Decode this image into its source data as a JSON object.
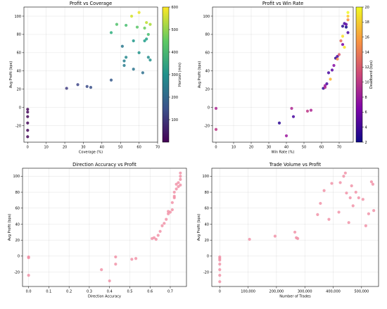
{
  "chart_data": [
    {
      "type": "scatter",
      "title": "Profit vs Coverage",
      "xlabel": "Coverage (%)",
      "ylabel": "Avg Profit (bps)",
      "xlim": [
        -2,
        70
      ],
      "ylim": [
        -38,
        110
      ],
      "xticks": [
        0,
        10,
        20,
        30,
        40,
        50,
        60,
        70
      ],
      "yticks": [
        -20,
        0,
        20,
        40,
        60,
        80,
        100
      ],
      "grid": true,
      "colormap": "viridis",
      "colorbar": {
        "label": "Horizon (min)",
        "range": [
          0,
          600
        ],
        "ticks": [
          100,
          200,
          300,
          400,
          500,
          600
        ]
      },
      "points": [
        {
          "x": 0,
          "y": -2,
          "c": 10
        },
        {
          "x": 0,
          "y": -5,
          "c": 10
        },
        {
          "x": 0,
          "y": -10,
          "c": 10
        },
        {
          "x": 0,
          "y": -17,
          "c": 10
        },
        {
          "x": 0,
          "y": -25,
          "c": 10
        },
        {
          "x": 0,
          "y": -32,
          "c": 10
        },
        {
          "x": 21,
          "y": 21,
          "c": 110
        },
        {
          "x": 27,
          "y": 25,
          "c": 130
        },
        {
          "x": 32,
          "y": 23,
          "c": 140
        },
        {
          "x": 34,
          "y": 22,
          "c": 150
        },
        {
          "x": 45,
          "y": 30,
          "c": 170
        },
        {
          "x": 51,
          "y": 67,
          "c": 240
        },
        {
          "x": 52,
          "y": 46,
          "c": 250
        },
        {
          "x": 52,
          "y": 51,
          "c": 260
        },
        {
          "x": 53,
          "y": 55,
          "c": 280
        },
        {
          "x": 57,
          "y": 42,
          "c": 230
        },
        {
          "x": 62,
          "y": 38,
          "c": 220
        },
        {
          "x": 65,
          "y": 55,
          "c": 290
        },
        {
          "x": 66,
          "y": 52,
          "c": 300
        },
        {
          "x": 60,
          "y": 60,
          "c": 310
        },
        {
          "x": 57,
          "y": 73,
          "c": 320
        },
        {
          "x": 63,
          "y": 73,
          "c": 330
        },
        {
          "x": 64,
          "y": 75,
          "c": 340
        },
        {
          "x": 45,
          "y": 82,
          "c": 380
        },
        {
          "x": 48,
          "y": 91,
          "c": 430
        },
        {
          "x": 53,
          "y": 90,
          "c": 420
        },
        {
          "x": 59,
          "y": 88,
          "c": 440
        },
        {
          "x": 65,
          "y": 80,
          "c": 420
        },
        {
          "x": 63,
          "y": 87,
          "c": 460
        },
        {
          "x": 56,
          "y": 100,
          "c": 560
        },
        {
          "x": 60,
          "y": 104,
          "c": 580
        },
        {
          "x": 64,
          "y": 93,
          "c": 540
        },
        {
          "x": 66,
          "y": 91,
          "c": 520
        }
      ]
    },
    {
      "type": "scatter",
      "title": "Profit vs Win Rate",
      "xlabel": "Win Rate (%)",
      "ylabel": "Avg Profit (bps)",
      "xlim": [
        -2,
        78
      ],
      "ylim": [
        -38,
        110
      ],
      "xticks": [
        0,
        10,
        20,
        30,
        40,
        50,
        60,
        70
      ],
      "yticks": [
        -20,
        0,
        20,
        40,
        60,
        80,
        100
      ],
      "grid": true,
      "colormap": "plasma",
      "colorbar": {
        "label": "Deadband (bps)",
        "range": [
          2,
          20
        ],
        "ticks": [
          2,
          4,
          6,
          8,
          10,
          12,
          14,
          16,
          18,
          20
        ]
      },
      "points": [
        {
          "x": 0,
          "y": -1,
          "c": 9
        },
        {
          "x": 0,
          "y": -24,
          "c": 10
        },
        {
          "x": 36,
          "y": -17,
          "c": 3
        },
        {
          "x": 40,
          "y": -31,
          "c": 8
        },
        {
          "x": 43,
          "y": -1,
          "c": 9
        },
        {
          "x": 44,
          "y": -10,
          "c": 4
        },
        {
          "x": 52,
          "y": -4,
          "c": 10
        },
        {
          "x": 54,
          "y": -3,
          "c": 9
        },
        {
          "x": 61,
          "y": 21,
          "c": 3
        },
        {
          "x": 62,
          "y": 22,
          "c": 9
        },
        {
          "x": 62,
          "y": 24,
          "c": 8
        },
        {
          "x": 63,
          "y": 26,
          "c": 4
        },
        {
          "x": 64,
          "y": 38,
          "c": 4
        },
        {
          "x": 65,
          "y": 31,
          "c": 17
        },
        {
          "x": 66,
          "y": 41,
          "c": 5
        },
        {
          "x": 67,
          "y": 46,
          "c": 7
        },
        {
          "x": 68,
          "y": 54,
          "c": 3
        },
        {
          "x": 69,
          "y": 56,
          "c": 4
        },
        {
          "x": 69,
          "y": 53,
          "c": 15
        },
        {
          "x": 70,
          "y": 58,
          "c": 12
        },
        {
          "x": 71,
          "y": 73,
          "c": 13
        },
        {
          "x": 72,
          "y": 69,
          "c": 6
        },
        {
          "x": 72,
          "y": 78,
          "c": 19
        },
        {
          "x": 73,
          "y": 66,
          "c": 19
        },
        {
          "x": 72,
          "y": 89,
          "c": 3
        },
        {
          "x": 73,
          "y": 92,
          "c": 4
        },
        {
          "x": 74,
          "y": 88,
          "c": 2
        },
        {
          "x": 74,
          "y": 91,
          "c": 5
        },
        {
          "x": 75,
          "y": 82,
          "c": 4
        },
        {
          "x": 75,
          "y": 96,
          "c": 15
        },
        {
          "x": 75,
          "y": 100,
          "c": 18
        },
        {
          "x": 75,
          "y": 104,
          "c": 20
        }
      ]
    },
    {
      "type": "scatter",
      "title": "Direction Accuracy vs Profit",
      "xlabel": "Direction Accuracy",
      "ylabel": "Avg Profit (bps)",
      "xlim": [
        -0.03,
        0.78
      ],
      "ylim": [
        -38,
        110
      ],
      "xticks": [
        0.0,
        0.1,
        0.2,
        0.3,
        0.4,
        0.5,
        0.6,
        0.7
      ],
      "yticks": [
        -20,
        0,
        20,
        40,
        60,
        80,
        100
      ],
      "grid": true,
      "color": "#f08ca3",
      "points": [
        {
          "x": 0.0,
          "y": -1
        },
        {
          "x": 0.0,
          "y": -2
        },
        {
          "x": 0.0,
          "y": -24
        },
        {
          "x": 0.36,
          "y": -17
        },
        {
          "x": 0.4,
          "y": -31
        },
        {
          "x": 0.43,
          "y": -1
        },
        {
          "x": 0.43,
          "y": -10
        },
        {
          "x": 0.51,
          "y": -4
        },
        {
          "x": 0.53,
          "y": -3
        },
        {
          "x": 0.61,
          "y": 22
        },
        {
          "x": 0.62,
          "y": 23
        },
        {
          "x": 0.63,
          "y": 21
        },
        {
          "x": 0.64,
          "y": 26
        },
        {
          "x": 0.65,
          "y": 31
        },
        {
          "x": 0.66,
          "y": 38
        },
        {
          "x": 0.67,
          "y": 41
        },
        {
          "x": 0.68,
          "y": 46
        },
        {
          "x": 0.69,
          "y": 53
        },
        {
          "x": 0.69,
          "y": 56
        },
        {
          "x": 0.7,
          "y": 55
        },
        {
          "x": 0.71,
          "y": 58
        },
        {
          "x": 0.71,
          "y": 67
        },
        {
          "x": 0.72,
          "y": 73
        },
        {
          "x": 0.72,
          "y": 75
        },
        {
          "x": 0.72,
          "y": 80
        },
        {
          "x": 0.73,
          "y": 84
        },
        {
          "x": 0.73,
          "y": 90
        },
        {
          "x": 0.74,
          "y": 87
        },
        {
          "x": 0.74,
          "y": 92
        },
        {
          "x": 0.75,
          "y": 96
        },
        {
          "x": 0.75,
          "y": 100
        },
        {
          "x": 0.75,
          "y": 104
        },
        {
          "x": 0.75,
          "y": 89
        }
      ]
    },
    {
      "type": "scatter",
      "title": "Trade Volume vs Profit",
      "xlabel": "Number of Trades",
      "ylabel": "Avg Profit (bps)",
      "xlim": [
        -28000,
        560000
      ],
      "ylim": [
        -38,
        110
      ],
      "xticks": [
        0,
        100000,
        200000,
        300000,
        400000,
        500000
      ],
      "xticklabels": [
        "0",
        "100,000",
        "200,000",
        "300,000",
        "400,000",
        "500,000"
      ],
      "yticks": [
        -20,
        0,
        20,
        40,
        60,
        80,
        100
      ],
      "grid": true,
      "color": "#f08ca3",
      "points": [
        {
          "x": 0,
          "y": -1
        },
        {
          "x": 0,
          "y": -3
        },
        {
          "x": 0,
          "y": -5
        },
        {
          "x": 0,
          "y": -10
        },
        {
          "x": 0,
          "y": -17
        },
        {
          "x": 0,
          "y": -24
        },
        {
          "x": 0,
          "y": -32
        },
        {
          "x": 105000,
          "y": 21
        },
        {
          "x": 195000,
          "y": 25
        },
        {
          "x": 265000,
          "y": 30
        },
        {
          "x": 270000,
          "y": 23
        },
        {
          "x": 275000,
          "y": 22
        },
        {
          "x": 345000,
          "y": 52
        },
        {
          "x": 355000,
          "y": 66
        },
        {
          "x": 368000,
          "y": 82
        },
        {
          "x": 385000,
          "y": 46
        },
        {
          "x": 395000,
          "y": 91
        },
        {
          "x": 420000,
          "y": 55
        },
        {
          "x": 425000,
          "y": 92
        },
        {
          "x": 437000,
          "y": 100
        },
        {
          "x": 443000,
          "y": 104
        },
        {
          "x": 447000,
          "y": 79
        },
        {
          "x": 455000,
          "y": 42
        },
        {
          "x": 460000,
          "y": 73
        },
        {
          "x": 465000,
          "y": 88
        },
        {
          "x": 470000,
          "y": 63
        },
        {
          "x": 480000,
          "y": 80
        },
        {
          "x": 490000,
          "y": 73
        },
        {
          "x": 505000,
          "y": 71
        },
        {
          "x": 515000,
          "y": 38
        },
        {
          "x": 525000,
          "y": 53
        },
        {
          "x": 535000,
          "y": 93
        },
        {
          "x": 540000,
          "y": 90
        },
        {
          "x": 543000,
          "y": 57
        }
      ]
    }
  ]
}
